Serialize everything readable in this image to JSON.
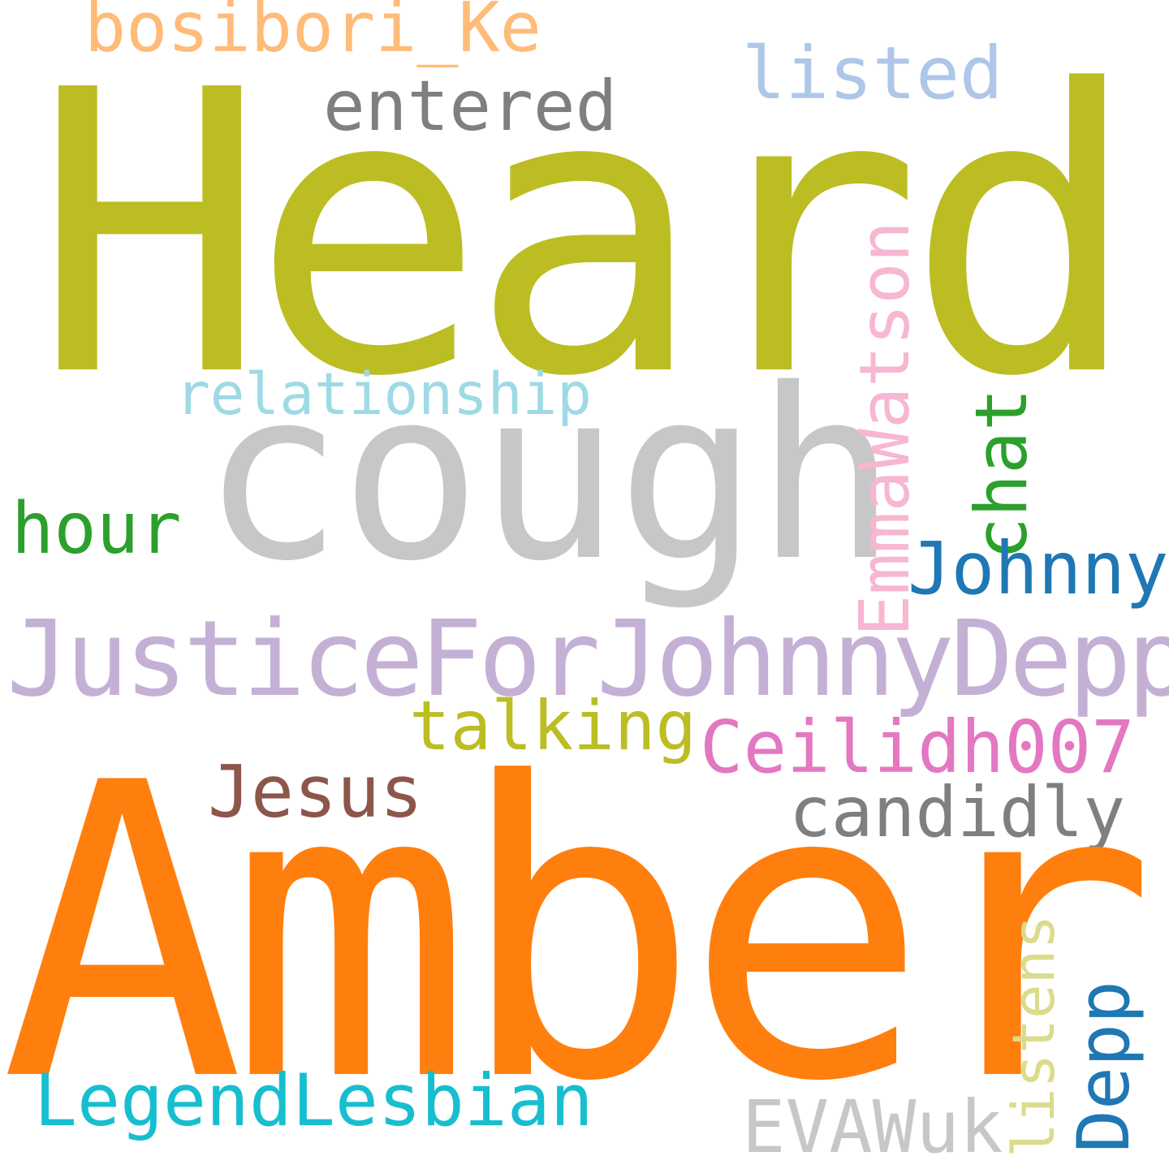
{
  "cloud": {
    "words": {
      "heard": {
        "text": "Heard",
        "color": "#bcbd22"
      },
      "amber": {
        "text": "Amber",
        "color": "#ff7f0e"
      },
      "cough": {
        "text": "cough",
        "color": "#c7c7c7"
      },
      "justice": {
        "text": "JusticeForJohnnyDepp",
        "color": "#c5b0d5"
      },
      "bosibori": {
        "text": "bosibori_Ke",
        "color": "#ffbb78"
      },
      "entered": {
        "text": "entered",
        "color": "#7f7f7f"
      },
      "listed": {
        "text": "listed",
        "color": "#aec7e8"
      },
      "relationship": {
        "text": "relationship",
        "color": "#9edae5"
      },
      "hour": {
        "text": "hour",
        "color": "#2ca02c"
      },
      "emmawatson": {
        "text": "EmmaWatson",
        "color": "#f7b6d2"
      },
      "chat": {
        "text": "chat",
        "color": "#2ca02c"
      },
      "johnny": {
        "text": "Johnny",
        "color": "#1f77b4"
      },
      "talking": {
        "text": "talking",
        "color": "#bcbd22"
      },
      "ceilidh": {
        "text": "Ceilidh007",
        "color": "#e377c2"
      },
      "jesus": {
        "text": "Jesus",
        "color": "#8c564b"
      },
      "candidly": {
        "text": "candidly",
        "color": "#7f7f7f"
      },
      "legend": {
        "text": "LegendLesbian",
        "color": "#17becf"
      },
      "evawuk": {
        "text": "EVAWuk",
        "color": "#c7c7c7"
      },
      "listens": {
        "text": "listens",
        "color": "#dbdb8d"
      },
      "depp": {
        "text": "Depp",
        "color": "#1f77b4"
      }
    }
  }
}
